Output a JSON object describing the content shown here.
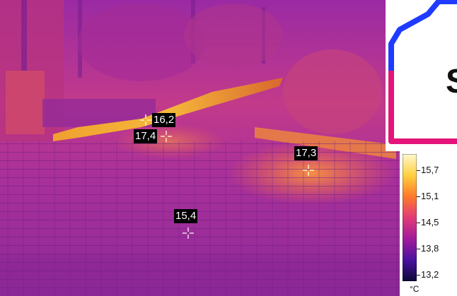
{
  "thermal_image": {
    "markers": [
      {
        "id": "sp1",
        "value": "16,2",
        "label_side": "right"
      },
      {
        "id": "sp2",
        "value": "17,4",
        "label_side": "left"
      },
      {
        "id": "sp3",
        "value": "17,3",
        "label_side": "above"
      },
      {
        "id": "sp4",
        "value": "15,4",
        "label_side": "above"
      }
    ]
  },
  "scale": {
    "ticks": [
      "15,7",
      "15,1",
      "14,5",
      "13,8",
      "13,2"
    ],
    "unit": "°C",
    "gradient_colors": [
      "#fff8d0",
      "#ffd040",
      "#ff7a2a",
      "#e23a78",
      "#a21a9a",
      "#4a10a0",
      "#0a0838"
    ]
  },
  "logo": {
    "letter": "S",
    "colors": {
      "outline_top": "#1f3bff",
      "outline_bottom": "#e4147a"
    }
  }
}
